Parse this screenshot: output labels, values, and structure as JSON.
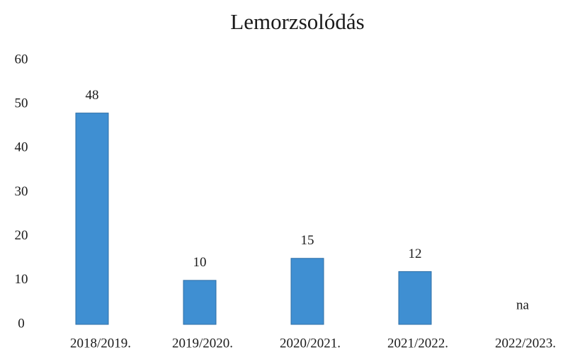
{
  "chart_data": {
    "type": "bar",
    "title": "Lemorzsolódás",
    "categories": [
      "2018/2019.",
      "2019/2020.",
      "2020/2021.",
      "2021/2022.",
      "2022/2023."
    ],
    "values": [
      48,
      10,
      15,
      12,
      null
    ],
    "value_labels": [
      "48",
      "10",
      "15",
      "12",
      "na"
    ],
    "color": "#3f8fd2",
    "ylim": [
      0,
      60
    ],
    "yticks": [
      0,
      10,
      20,
      30,
      40,
      50,
      60
    ],
    "grid": false
  }
}
